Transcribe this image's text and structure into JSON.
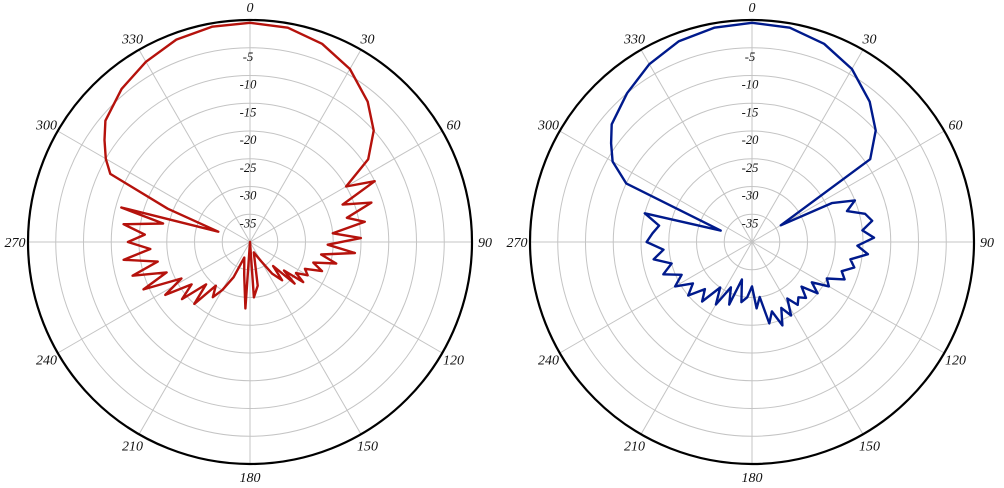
{
  "chart_data": [
    {
      "type": "polar-line",
      "angle_ticks": [
        "0",
        "30",
        "60",
        "90",
        "120",
        "150",
        "180",
        "210",
        "240",
        "270",
        "300",
        "330"
      ],
      "radial_ticks": [
        "-5",
        "-10",
        "-15",
        "-20",
        "-25",
        "-30",
        "-35"
      ],
      "rlim": [
        -40,
        0
      ],
      "grid": true,
      "series": [
        {
          "color": "#b5120c",
          "theta": [
            0,
            10,
            20,
            30,
            40,
            48,
            55,
            60,
            64,
            68,
            72,
            76,
            80,
            84,
            88,
            92,
            96,
            100,
            104,
            108,
            112,
            116,
            120,
            124,
            127,
            130,
            133,
            136,
            140,
            145,
            150,
            160,
            170,
            176,
            180,
            184,
            190,
            200,
            205,
            210,
            214,
            218,
            222,
            226,
            230,
            234,
            238,
            242,
            246,
            250,
            254,
            258,
            262,
            266,
            270,
            274,
            278,
            282,
            285,
            288,
            292,
            296,
            300,
            305,
            310,
            320,
            330,
            340,
            350,
            360
          ],
          "r": [
            -0.5,
            -0.8,
            -2,
            -4,
            -7,
            -10,
            -14,
            -20,
            -15,
            -22,
            -17,
            -22,
            -19,
            -25,
            -20,
            -26,
            -21,
            -27,
            -24,
            -28,
            -26,
            -29,
            -28,
            -30,
            -28,
            -32,
            -29,
            -34,
            -31,
            -33,
            -36,
            -38,
            -32,
            -30,
            -40,
            -28,
            -34,
            -37,
            -33,
            -30,
            -28,
            -30,
            -25,
            -29,
            -24,
            -27,
            -22,
            -26,
            -19,
            -24,
            -18,
            -23,
            -17,
            -22,
            -18,
            -21,
            -17,
            -24,
            -16,
            -34,
            -24,
            -12,
            -10,
            -8,
            -6,
            -4,
            -2.5,
            -1.2,
            -0.6,
            -0.5
          ]
        },
        {
          "color": "#001a8c",
          "theta": [
            0,
            10,
            20,
            30,
            40,
            48,
            55,
            60,
            64,
            68,
            72,
            76,
            80,
            84,
            88,
            92,
            96,
            100,
            104,
            108,
            112,
            116,
            120,
            124,
            128,
            132,
            136,
            140,
            144,
            148,
            152,
            156,
            160,
            164,
            168,
            172,
            176,
            180,
            185,
            190,
            195,
            200,
            205,
            210,
            215,
            220,
            225,
            230,
            235,
            240,
            245,
            250,
            255,
            260,
            265,
            270,
            275,
            280,
            285,
            290,
            295,
            300,
            305,
            310,
            320,
            330,
            340,
            350,
            360
          ],
          "r": [
            -0.5,
            -0.8,
            -2,
            -4,
            -7,
            -10,
            -14,
            -34,
            -24,
            -20,
            -22,
            -19,
            -18,
            -20,
            -18,
            -21,
            -19,
            -22,
            -21,
            -23,
            -22,
            -25,
            -24,
            -27,
            -25,
            -28,
            -26,
            -27,
            -26,
            -28,
            -25,
            -27,
            -24,
            -27,
            -25,
            -30,
            -28,
            -32,
            -30,
            -29,
            -33,
            -28,
            -31,
            -27,
            -30,
            -26,
            -28,
            -25,
            -27,
            -24,
            -26,
            -23,
            -25,
            -22,
            -24,
            -21,
            -22,
            -23,
            -20,
            -34,
            -15,
            -11,
            -9,
            -7,
            -5,
            -3,
            -1.5,
            -0.8,
            -0.5
          ]
        }
      ]
    }
  ]
}
